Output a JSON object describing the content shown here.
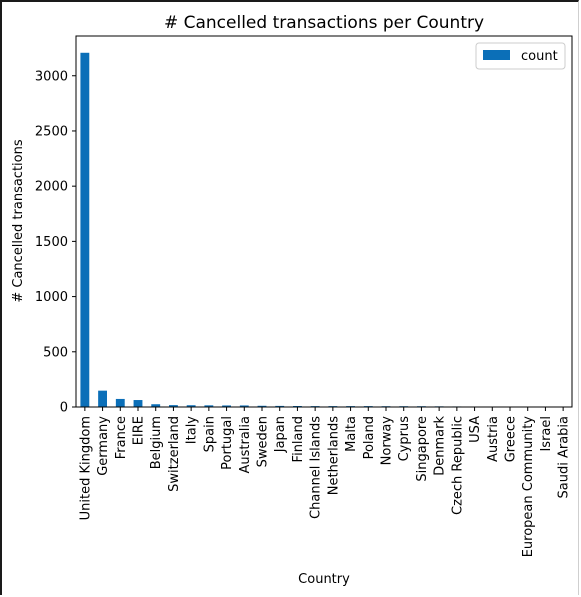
{
  "chart_data": {
    "type": "bar",
    "title": "# Cancelled transactions per Country",
    "xlabel": "Country",
    "ylabel": "# Cancelled transactions",
    "ylim": [
      0,
      3360
    ],
    "yticks": [
      0,
      500,
      1000,
      1500,
      2000,
      2500,
      3000
    ],
    "grid": false,
    "legend": "top-right",
    "categories": [
      "United Kingdom",
      "Germany",
      "France",
      "EIRE",
      "Belgium",
      "Switzerland",
      "Italy",
      "Spain",
      "Portugal",
      "Australia",
      "Sweden",
      "Japan",
      "Finland",
      "Channel Islands",
      "Netherlands",
      "Malta",
      "Poland",
      "Norway",
      "Cyprus",
      "Singapore",
      "Denmark",
      "Czech Republic",
      "USA",
      "Austria",
      "Greece",
      "European Community",
      "Israel",
      "Saudi Arabia"
    ],
    "series": [
      {
        "name": "count",
        "color": "#0b6fb8",
        "values": [
          3208,
          148,
          73,
          63,
          25,
          17,
          16,
          15,
          14,
          14,
          11,
          10,
          9,
          8,
          8,
          8,
          8,
          7,
          7,
          7,
          6,
          5,
          2,
          2,
          1,
          1,
          1,
          1
        ]
      }
    ]
  }
}
